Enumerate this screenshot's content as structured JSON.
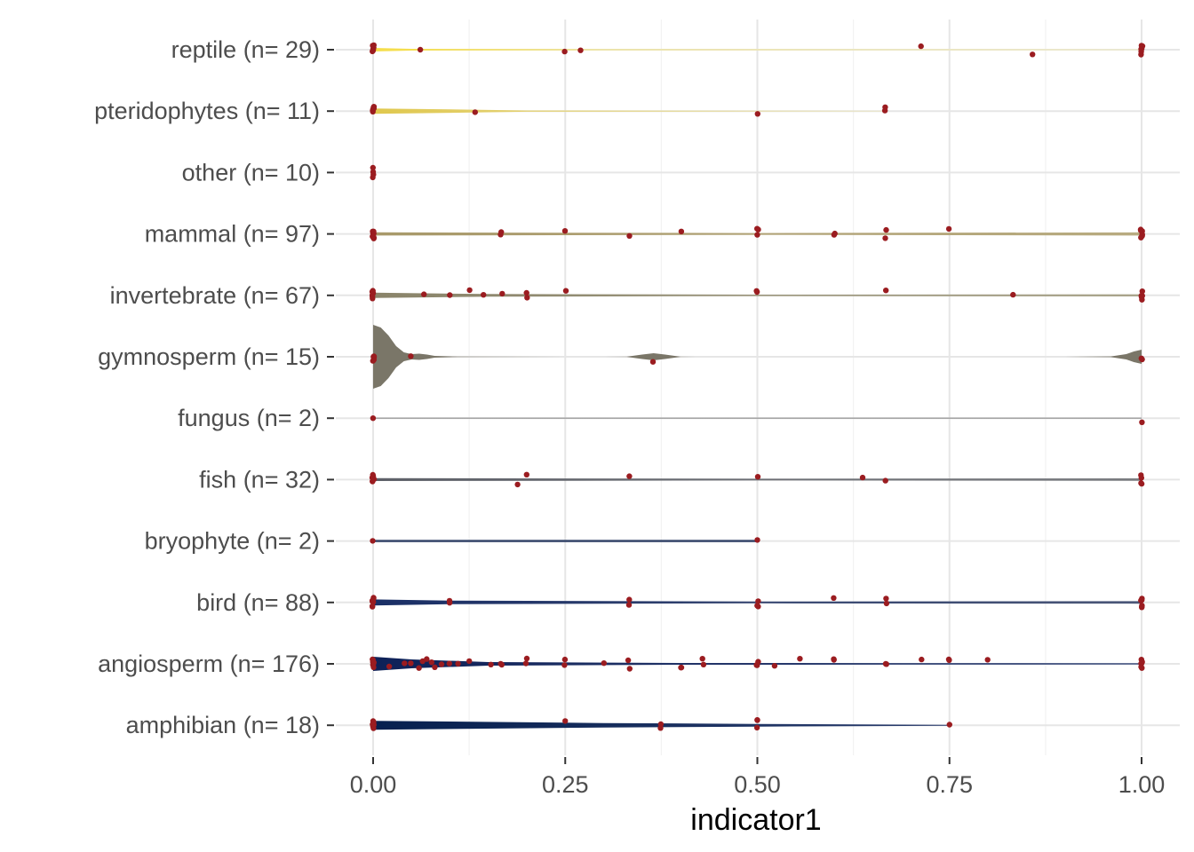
{
  "chart_data": {
    "type": "violin",
    "xlabel": "indicator1",
    "ylabel": "",
    "xlim": [
      0,
      1
    ],
    "x_ticks": [
      "0.00",
      "0.25",
      "0.50",
      "0.75",
      "1.00"
    ],
    "x_tick_values": [
      0,
      0.25,
      0.5,
      0.75,
      1
    ],
    "grid": true,
    "legend": "none",
    "point_color": "#9b1c20",
    "categories": [
      {
        "label": "reptile (n= 29)",
        "color": "#f5de4a",
        "color_end": "#ede9c9",
        "range": [
          0,
          1
        ],
        "density": [
          [
            0,
            2.0
          ],
          [
            0.05,
            1.0
          ],
          [
            0.3,
            0.5
          ],
          [
            1,
            0.6
          ]
        ],
        "points": [
          0,
          0,
          0,
          0,
          0,
          0,
          0,
          0.062,
          0.25,
          0.27,
          0.714,
          0.857,
          1,
          1,
          1,
          1,
          1,
          1
        ]
      },
      {
        "label": "pteridophytes (n= 11)",
        "color": "#e0c84e",
        "color_end": "#ebe6c8",
        "range": [
          0,
          0.667
        ],
        "density": [
          [
            0,
            3.0
          ],
          [
            0.13,
            1.6
          ],
          [
            0.2,
            0.7
          ],
          [
            0.667,
            0.5
          ]
        ],
        "points": [
          0,
          0,
          0,
          0,
          0,
          0,
          0.133,
          0.5,
          0.667,
          0.667
        ]
      },
      {
        "label": "other (n= 10)",
        "color": "#c9b66a",
        "color_end": "#c9b66a",
        "range": [
          0,
          0
        ],
        "density": [],
        "points": [
          0,
          0,
          0,
          0
        ]
      },
      {
        "label": "mammal (n= 97)",
        "color": "#a8996a",
        "color_end": "#b8ab80",
        "range": [
          0,
          1
        ],
        "density": [
          [
            0,
            1.8
          ],
          [
            0.5,
            1.0
          ],
          [
            1,
            1.8
          ]
        ],
        "points": [
          0,
          0,
          0,
          0,
          0,
          0,
          0,
          0,
          0.167,
          0.167,
          0.25,
          0.333,
          0.4,
          0.5,
          0.5,
          0.5,
          0.6,
          0.6,
          0.667,
          0.667,
          0.75,
          1,
          1,
          1,
          1,
          1,
          1,
          1
        ]
      },
      {
        "label": "invertebrate (n= 67)",
        "color": "#8a846a",
        "color_end": "#aaa58c",
        "range": [
          0,
          1
        ],
        "density": [
          [
            0,
            3.0
          ],
          [
            0.15,
            1.5
          ],
          [
            0.5,
            0.8
          ],
          [
            1,
            1.2
          ]
        ],
        "points": [
          0,
          0,
          0,
          0,
          0,
          0,
          0,
          0.067,
          0.1,
          0.125,
          0.143,
          0.167,
          0.2,
          0.2,
          0.25,
          0.5,
          0.5,
          0.667,
          0.833,
          1,
          1,
          1,
          1,
          1
        ]
      },
      {
        "label": "gymnosperm (n= 15)",
        "color": "#7a7668",
        "color_end": "#7a7668",
        "range": [
          0,
          1
        ],
        "density": [
          [
            0,
            36
          ],
          [
            0.01,
            33
          ],
          [
            0.02,
            24
          ],
          [
            0.03,
            12
          ],
          [
            0.04,
            5
          ],
          [
            0.05,
            3
          ],
          [
            0.06,
            3.5
          ],
          [
            0.07,
            2.5
          ],
          [
            0.08,
            1
          ],
          [
            0.11,
            0.2
          ],
          [
            0.3,
            0
          ],
          [
            0.33,
            0.1
          ],
          [
            0.35,
            2.5
          ],
          [
            0.365,
            4
          ],
          [
            0.38,
            2.5
          ],
          [
            0.4,
            0.1
          ],
          [
            0.42,
            0
          ],
          [
            0.9,
            0
          ],
          [
            0.96,
            0.4
          ],
          [
            0.98,
            3
          ],
          [
            0.99,
            6
          ],
          [
            1,
            8
          ]
        ],
        "points": [
          0,
          0,
          0,
          0,
          0,
          0,
          0.05,
          0.364,
          1,
          1
        ]
      },
      {
        "label": "fungus (n= 2)",
        "color": "#9c9c9c",
        "color_end": "#9c9c9c",
        "range": [
          0,
          1
        ],
        "density": [
          [
            0,
            0.7
          ],
          [
            1,
            0.7
          ]
        ],
        "points": [
          0,
          1
        ]
      },
      {
        "label": "fish (n= 32)",
        "color": "#5d6068",
        "color_end": "#7a7c80",
        "range": [
          0,
          1
        ],
        "density": [
          [
            0,
            1.6
          ],
          [
            0.5,
            1.0
          ],
          [
            1,
            1.4
          ]
        ],
        "points": [
          0,
          0,
          0,
          0,
          0,
          0,
          0.188,
          0.2,
          0.333,
          0.5,
          0.636,
          0.667,
          1,
          1,
          1,
          1
        ]
      },
      {
        "label": "bryophyte (n= 2)",
        "color": "#3b4b6e",
        "color_end": "#3b4b6e",
        "range": [
          0,
          0.5
        ],
        "density": [
          [
            0,
            1.3
          ],
          [
            0.5,
            1.3
          ]
        ],
        "points": [
          0,
          0.5
        ]
      },
      {
        "label": "bird (n= 88)",
        "color": "#1a2f66",
        "color_end": "#4b5778",
        "range": [
          0,
          1
        ],
        "density": [
          [
            0,
            3.4
          ],
          [
            0.1,
            2.0
          ],
          [
            0.5,
            1.0
          ],
          [
            1,
            1.4
          ]
        ],
        "points": [
          0,
          0,
          0,
          0,
          0,
          0,
          0,
          0,
          0.1,
          0.1,
          0.333,
          0.333,
          0.5,
          0.5,
          0.5,
          0.6,
          0.667,
          0.667,
          1,
          1,
          1,
          1,
          1,
          1,
          1
        ]
      },
      {
        "label": "angiosperm (n= 176)",
        "color": "#0e2158",
        "color_end": "#3b4c7c",
        "range": [
          0,
          1
        ],
        "density": [
          [
            0,
            8
          ],
          [
            0.05,
            5
          ],
          [
            0.15,
            2
          ],
          [
            0.4,
            1
          ],
          [
            1,
            0.8
          ]
        ],
        "points": [
          0,
          0,
          0,
          0,
          0,
          0,
          0,
          0,
          0.02,
          0.04,
          0.05,
          0.06,
          0.065,
          0.07,
          0.075,
          0.08,
          0.09,
          0.1,
          0.111,
          0.125,
          0.154,
          0.167,
          0.167,
          0.2,
          0.2,
          0.25,
          0.25,
          0.3,
          0.333,
          0.333,
          0.4,
          0.4,
          0.429,
          0.429,
          0.5,
          0.5,
          0.5,
          0.5,
          0.522,
          0.556,
          0.6,
          0.6,
          0.667,
          0.667,
          0.714,
          0.75,
          0.75,
          0.8,
          1,
          1,
          1,
          1,
          1,
          1,
          1
        ]
      },
      {
        "label": "amphibian (n= 18)",
        "color": "#06204f",
        "color_end": "#2c3e6e",
        "range": [
          0,
          0.75
        ],
        "density": [
          [
            0,
            5
          ],
          [
            0.3,
            2.5
          ],
          [
            0.5,
            1.5
          ],
          [
            0.75,
            0.5
          ]
        ],
        "points": [
          0,
          0,
          0,
          0,
          0,
          0,
          0.25,
          0.375,
          0.375,
          0.5,
          0.5,
          0.5,
          0.75
        ]
      }
    ]
  }
}
